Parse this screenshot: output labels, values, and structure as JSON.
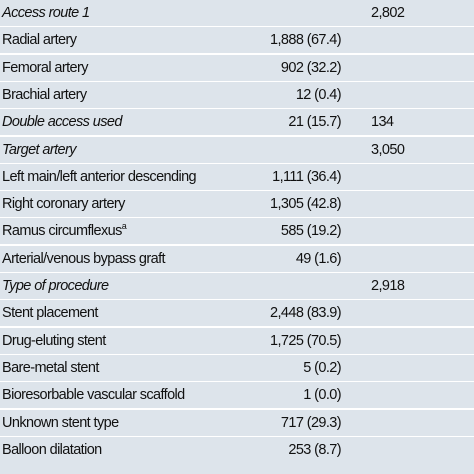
{
  "table": {
    "rows": [
      {
        "label": "Access route 1",
        "italic": true,
        "total": "2,802"
      },
      {
        "label": "Radial artery",
        "value": "1,888 (67.4)"
      },
      {
        "label": "Femoral artery",
        "value": "902 (32.2)"
      },
      {
        "label": "Brachial artery",
        "value": "12 (0.4)"
      },
      {
        "label": "Double access used",
        "italic": true,
        "value": "21 (15.7)",
        "total": "134"
      },
      {
        "label": "Target artery",
        "italic": true,
        "total": "3,050"
      },
      {
        "label": "Left main/left anterior descending",
        "value": "1,111 (36.4)"
      },
      {
        "label": "Right coronary artery",
        "value": "1,305 (42.8)"
      },
      {
        "label": "Ramus circumflexus",
        "note": "a",
        "value": "585 (19.2)"
      },
      {
        "label": "Arterial/venous bypass graft",
        "value": "49 (1.6)"
      },
      {
        "label": "Type of procedure",
        "italic": true,
        "total": "2,918"
      },
      {
        "label": "Stent placement",
        "value": "2,448 (83.9)"
      },
      {
        "label": "Drug-eluting stent",
        "value": "1,725 (70.5)"
      },
      {
        "label": "Bare-metal stent",
        "value": "5 (0.2)"
      },
      {
        "label": "Bioresorbable vascular scaffold",
        "value": "1 (0.0)"
      },
      {
        "label": "Unknown stent type",
        "value": "717 (29.3)"
      },
      {
        "label": "Balloon dilatation",
        "value": "253 (8.7)"
      }
    ]
  }
}
